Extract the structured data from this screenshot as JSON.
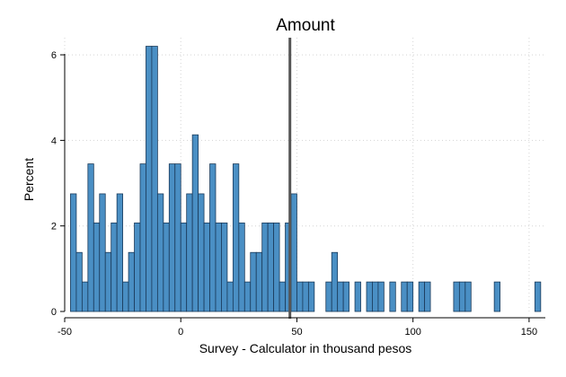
{
  "chart_data": {
    "type": "bar",
    "title": "Amount",
    "xlabel": "Survey - Calculator in thousand pesos",
    "ylabel": "Percent",
    "bin_width": 2.5,
    "xlim": [
      -50,
      157
    ],
    "ylim": [
      0,
      6.4
    ],
    "x_ticks": [
      -50,
      0,
      50,
      100,
      150
    ],
    "y_ticks": [
      0,
      2,
      4,
      6
    ],
    "x_tick_labels": [
      "-50",
      "0",
      "50",
      "100",
      "150"
    ],
    "y_tick_labels": [
      "0",
      "2",
      "4",
      "6"
    ],
    "grid": true,
    "reference_line_x": 47,
    "bin_starts": [
      -47.5,
      -45,
      -42.5,
      -40,
      -37.5,
      -35,
      -32.5,
      -30,
      -27.5,
      -25,
      -22.5,
      -20,
      -17.5,
      -15,
      -12.5,
      -10,
      -7.5,
      -5,
      -2.5,
      0,
      2.5,
      5,
      7.5,
      10,
      12.5,
      15,
      17.5,
      20,
      22.5,
      25,
      27.5,
      30,
      32.5,
      35,
      37.5,
      40,
      42.5,
      45,
      47.5,
      50,
      52.5,
      55,
      62.5,
      65,
      67.5,
      70,
      75,
      80,
      82.5,
      85,
      90,
      95,
      97.5,
      102.5,
      105,
      117.5,
      120,
      122.5,
      135,
      152.5
    ],
    "values": [
      2.75,
      1.38,
      0.69,
      3.45,
      2.07,
      2.75,
      1.38,
      2.07,
      2.75,
      0.69,
      1.38,
      2.07,
      3.45,
      6.2,
      6.2,
      2.75,
      2.07,
      3.45,
      3.45,
      2.07,
      2.75,
      4.13,
      2.75,
      2.07,
      3.45,
      2.07,
      2.07,
      0.69,
      3.45,
      2.07,
      0.69,
      1.38,
      1.38,
      2.07,
      2.07,
      2.07,
      0.69,
      2.07,
      2.75,
      0.69,
      0.69,
      0.69,
      0.69,
      1.38,
      0.69,
      0.69,
      0.69,
      0.69,
      0.69,
      0.69,
      0.69,
      0.69,
      0.69,
      0.69,
      0.69,
      0.69,
      0.69,
      0.69,
      0.69,
      0.69
    ],
    "bar_color": "#4a8fc4",
    "bar_edge_color": "#1a3a5a",
    "reference_line_color": "#555555"
  }
}
